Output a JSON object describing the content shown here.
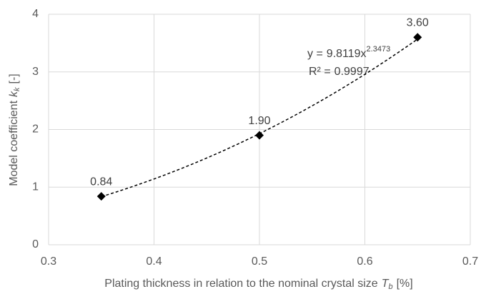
{
  "chart_data": {
    "type": "scatter",
    "xlabel": {
      "text": "Plating thickness in relation to the nominal crystal size",
      "symbol": "T",
      "subscript": "b",
      "unit": "[%]"
    },
    "ylabel": {
      "text": "Model coefficient",
      "symbol": "k",
      "subscript": "k",
      "unit": "[-]"
    },
    "x": [
      0.35,
      0.5,
      0.65
    ],
    "values": [
      0.84,
      1.9,
      3.6
    ],
    "value_labels": [
      "0.84",
      "1.90",
      "3.60"
    ],
    "color": "#000000",
    "xlim": [
      0.3,
      0.7
    ],
    "xticks": [
      0.3,
      0.4,
      0.5,
      0.6,
      0.7
    ],
    "ylim": [
      0,
      4
    ],
    "yticks": [
      0,
      1,
      2,
      3,
      4
    ],
    "grid": true,
    "trendline": {
      "kind": "power",
      "style": "dashed",
      "lhs": "y =",
      "coefficient": 9.8119,
      "variable": "x",
      "exponent": 2.3473,
      "r_squared_label": "R² =",
      "r_squared": 0.9997
    }
  }
}
